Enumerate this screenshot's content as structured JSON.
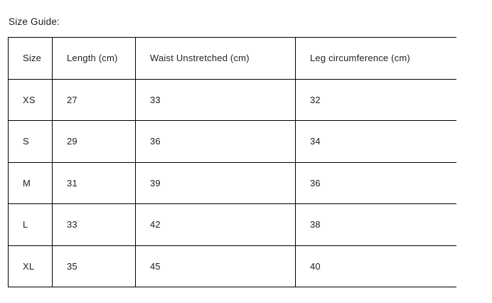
{
  "page": {
    "title": "Size Guide:"
  },
  "table": {
    "columns": [
      "Size",
      "Length (cm)",
      "Waist Unstretched (cm)",
      "Leg circumference (cm)"
    ],
    "rows": [
      [
        "XS",
        "27",
        "33",
        "32"
      ],
      [
        "S",
        "29",
        "36",
        "34"
      ],
      [
        "M",
        "31",
        "39",
        "36"
      ],
      [
        "L",
        "33",
        "42",
        "38"
      ],
      [
        "XL",
        "35",
        "45",
        "40"
      ]
    ]
  },
  "colors": {
    "background": "#ffffff",
    "text": "#212121",
    "border": "#000000"
  }
}
